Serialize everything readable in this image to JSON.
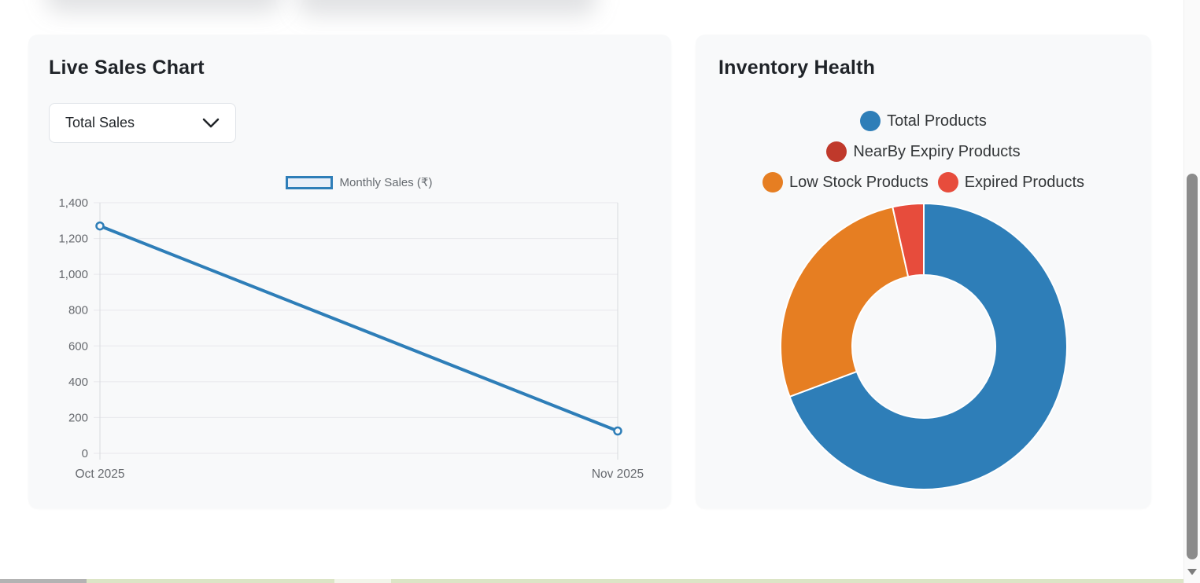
{
  "sales_card": {
    "title": "Live Sales Chart",
    "filter_dropdown": {
      "value": "Total Sales"
    }
  },
  "inventory_card": {
    "title": "Inventory Health"
  },
  "chart_data": [
    {
      "id": "monthly_sales_line",
      "type": "line",
      "title": "Live Sales Chart",
      "x": [
        "Oct 2025",
        "Nov 2025"
      ],
      "series": [
        {
          "name": "Monthly Sales (₹)",
          "values": [
            1270,
            125
          ]
        }
      ],
      "ylim": [
        0,
        1400
      ],
      "ytick_step": 200,
      "yticks": [
        0,
        200,
        400,
        600,
        800,
        1000,
        1200,
        1400
      ],
      "grid": true,
      "legend_position": "top",
      "line_color": "#2e7eb8",
      "point_style": "hollow-circle",
      "axis_text_color": "#66696e",
      "grid_color": "#e7e8ec"
    },
    {
      "id": "inventory_donut",
      "type": "pie",
      "subtype": "doughnut",
      "title": "Inventory Health",
      "labels": [
        "Total Products",
        "NearBy Expiry Products",
        "Low Stock Products",
        "Expired Products"
      ],
      "values_percent": [
        69.3,
        0,
        27.2,
        3.5
      ],
      "colors": [
        "#2e7eb8",
        "#c0392b",
        "#e67e22",
        "#e74c3c"
      ],
      "cutout_percent": 50,
      "legend_position": "top",
      "legend_rows": [
        [
          0
        ],
        [
          1
        ],
        [
          2,
          3
        ]
      ],
      "border_color": "#ffffff"
    }
  ]
}
